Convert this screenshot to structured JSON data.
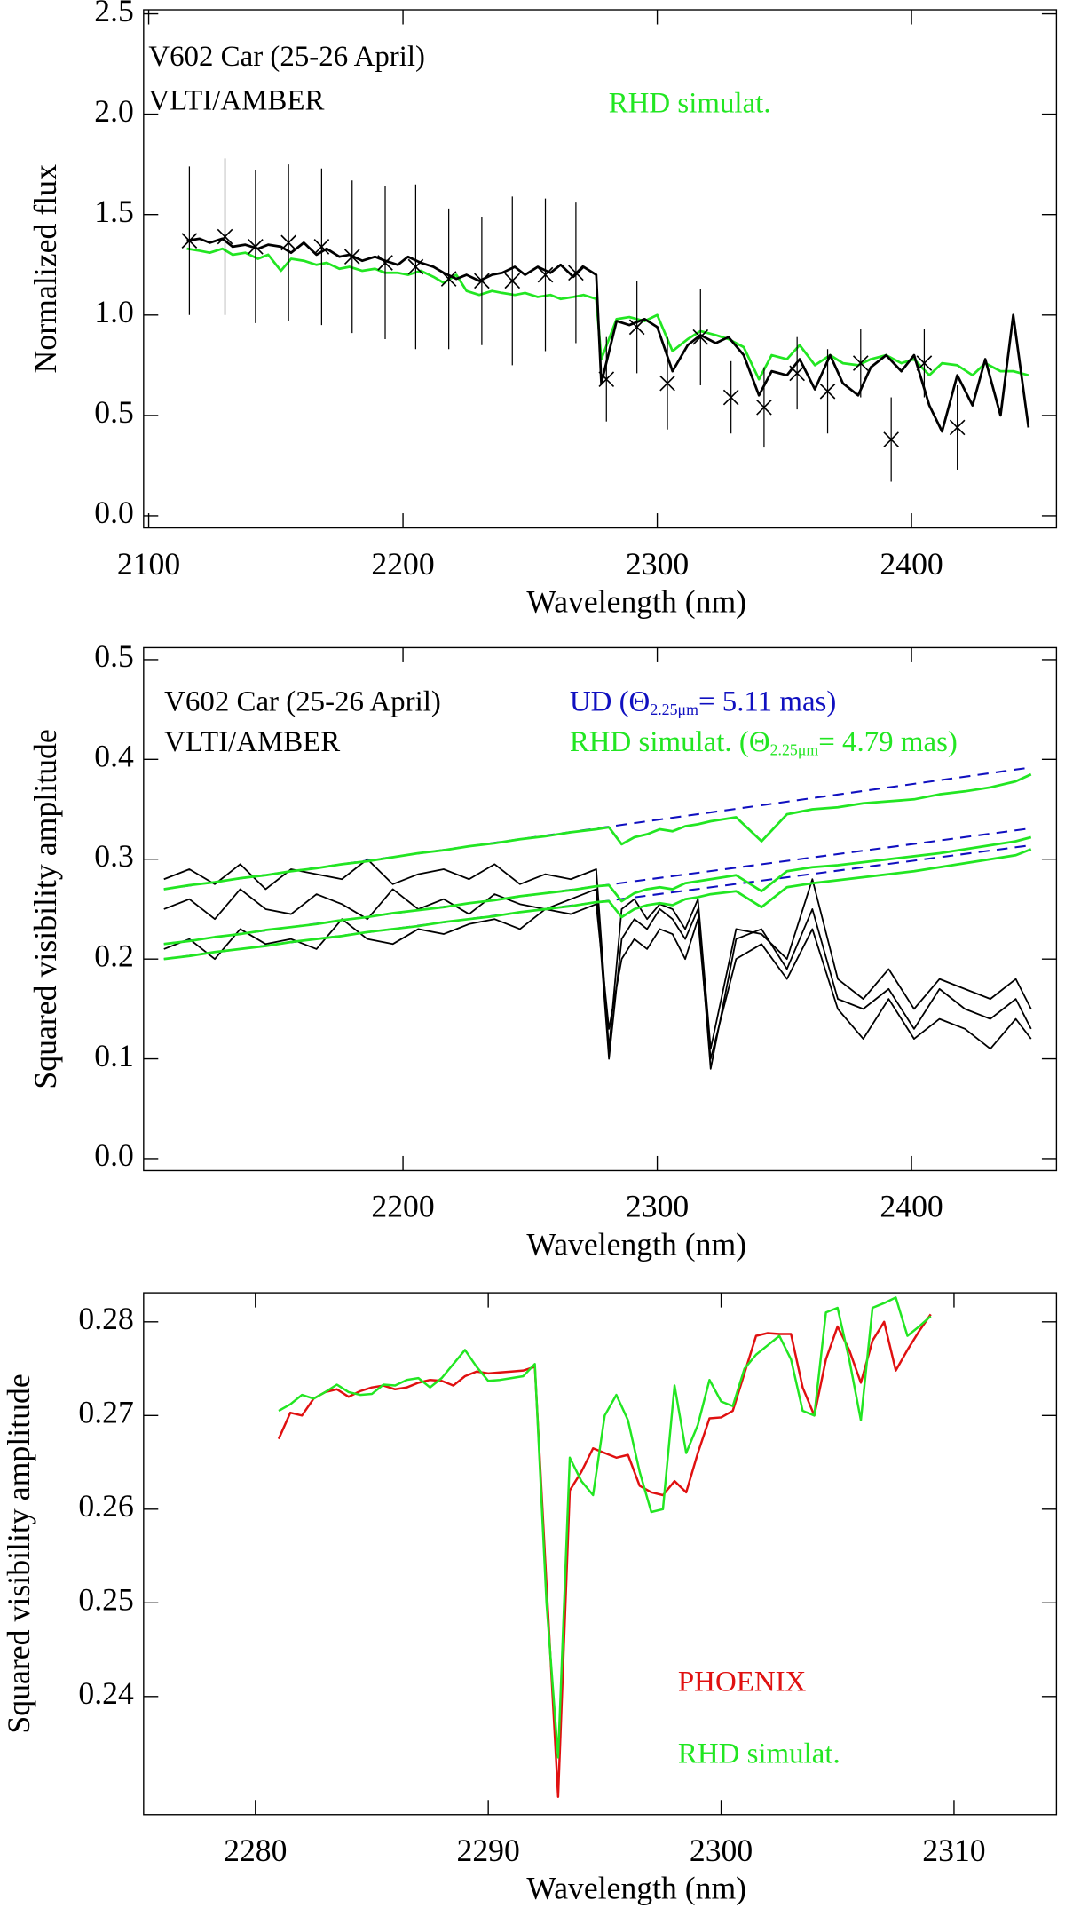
{
  "chart_data": [
    {
      "type": "line",
      "ylabel": "Normalized flux",
      "xlabel": "Wavelength (nm)",
      "xlim": [
        2098,
        2457
      ],
      "ylim": [
        -0.06,
        2.52
      ],
      "xticks": [
        2100,
        2200,
        2300,
        2400
      ],
      "yticks": [
        {
          "value": 0,
          "label": "0.0"
        },
        0.5,
        {
          "value": 1,
          "label": "1.0"
        },
        1.5,
        {
          "value": 2,
          "label": "2.0"
        },
        2.5
      ],
      "annotations": [
        {
          "text": "V602 Car (25-26 April)",
          "color": "#000000"
        },
        {
          "text": "VLTI/AMBER",
          "color": "#000000"
        },
        {
          "text": "RHD simulat.",
          "color": "#22e622"
        }
      ],
      "x": [
        2115,
        2120,
        2124,
        2129,
        2133,
        2138,
        2143,
        2147,
        2152,
        2156,
        2161,
        2166,
        2170,
        2175,
        2179,
        2184,
        2189,
        2193,
        2198,
        2202,
        2207,
        2212,
        2216,
        2221,
        2225,
        2230,
        2235,
        2239,
        2244,
        2248,
        2253,
        2258,
        2262,
        2267,
        2271,
        2276,
        2278,
        2284,
        2289,
        2295,
        2300,
        2306,
        2312,
        2317,
        2323,
        2328,
        2334,
        2340,
        2345,
        2351,
        2356,
        2362,
        2368,
        2373,
        2379,
        2384,
        2390,
        2396,
        2401,
        2407,
        2412,
        2418,
        2424,
        2429,
        2435,
        2440,
        2446
      ],
      "series": [
        {
          "color": "#22e622",
          "width": 2,
          "values": [
            1.33,
            1.32,
            1.31,
            1.33,
            1.3,
            1.31,
            1.28,
            1.3,
            1.22,
            1.28,
            1.27,
            1.25,
            1.26,
            1.23,
            1.24,
            1.22,
            1.23,
            1.21,
            1.21,
            1.2,
            1.22,
            1.19,
            1.16,
            1.2,
            1.12,
            1.1,
            1.12,
            1.11,
            1.1,
            1.11,
            1.09,
            1.1,
            1.08,
            1.09,
            1.1,
            1.08,
            0.78,
            0.98,
            0.99,
            0.97,
            1.0,
            0.82,
            0.88,
            0.92,
            0.9,
            0.88,
            0.84,
            0.68,
            0.8,
            0.78,
            0.85,
            0.75,
            0.8,
            0.76,
            0.75,
            0.78,
            0.8,
            0.76,
            0.78,
            0.7,
            0.76,
            0.75,
            0.7,
            0.76,
            0.72,
            0.72,
            0.7
          ]
        },
        {
          "color": "#000000",
          "width": 2,
          "values": [
            1.37,
            1.38,
            1.36,
            1.38,
            1.34,
            1.35,
            1.33,
            1.35,
            1.34,
            1.31,
            1.36,
            1.3,
            1.33,
            1.29,
            1.3,
            1.27,
            1.29,
            1.27,
            1.25,
            1.29,
            1.26,
            1.24,
            1.21,
            1.18,
            1.2,
            1.17,
            1.2,
            1.21,
            1.24,
            1.2,
            1.24,
            1.21,
            1.25,
            1.19,
            1.24,
            1.2,
            0.66,
            0.97,
            0.95,
            0.98,
            0.94,
            0.72,
            0.85,
            0.9,
            0.86,
            0.89,
            0.8,
            0.6,
            0.72,
            0.7,
            0.78,
            0.63,
            0.8,
            0.66,
            0.6,
            0.74,
            0.8,
            0.72,
            0.8,
            0.55,
            0.42,
            0.7,
            0.55,
            0.78,
            0.5,
            1.0,
            0.44
          ]
        }
      ],
      "errorbars": {
        "color": "#000000",
        "x": [
          2116,
          2130,
          2142,
          2155,
          2168,
          2180,
          2193,
          2205,
          2218,
          2231,
          2243,
          2256,
          2268,
          2280,
          2292,
          2304,
          2317,
          2329,
          2342,
          2355,
          2367,
          2380,
          2392,
          2405,
          2418
        ],
        "values": [
          1.37,
          1.39,
          1.34,
          1.36,
          1.34,
          1.29,
          1.26,
          1.24,
          1.18,
          1.17,
          1.17,
          1.2,
          1.21,
          0.68,
          0.94,
          0.66,
          0.89,
          0.59,
          0.54,
          0.71,
          0.62,
          0.76,
          0.38,
          0.76,
          0.44
        ],
        "errors": [
          0.37,
          0.39,
          0.38,
          0.39,
          0.39,
          0.38,
          0.38,
          0.41,
          0.35,
          0.32,
          0.42,
          0.38,
          0.35,
          0.21,
          0.23,
          0.23,
          0.24,
          0.18,
          0.2,
          0.18,
          0.21,
          0.17,
          0.21,
          0.17,
          0.21
        ]
      }
    },
    {
      "type": "line",
      "ylabel": "Squared visibility amplitude",
      "xlabel": "Wavelength (nm)",
      "xlim": [
        2098,
        2457
      ],
      "ylim": [
        -0.012,
        0.512
      ],
      "xticks": [
        2200,
        2300,
        2400
      ],
      "yticks": [
        {
          "value": 0,
          "label": "0.0"
        },
        0.1,
        0.2,
        0.3,
        0.4,
        0.5
      ],
      "annotations": [
        {
          "text": "V602 Car (25-26 April)",
          "color": "#000000"
        },
        {
          "text": "VLTI/AMBER",
          "color": "#000000"
        },
        {
          "text": "UD (Θ",
          "sub": "2.25μm",
          "after": "= 5.11 mas)",
          "color": "#1010c0"
        },
        {
          "text": "RHD simulat. (Θ",
          "sub": "2.25μm",
          "after": "= 4.79 mas)",
          "color": "#22e622"
        }
      ],
      "x": [
        2106,
        2116,
        2126,
        2136,
        2146,
        2156,
        2166,
        2176,
        2186,
        2196,
        2206,
        2216,
        2226,
        2236,
        2246,
        2256,
        2266,
        2276,
        2281,
        2286,
        2291,
        2296,
        2301,
        2306,
        2311,
        2316,
        2321,
        2331,
        2341,
        2351,
        2361,
        2371,
        2381,
        2391,
        2401,
        2411,
        2421,
        2431,
        2441,
        2447
      ],
      "series": [
        {
          "color": "#000000",
          "width": 1.3,
          "values": [
            0.28,
            0.29,
            0.275,
            0.295,
            0.27,
            0.29,
            0.285,
            0.28,
            0.3,
            0.275,
            0.285,
            0.29,
            0.28,
            0.295,
            0.275,
            0.285,
            0.28,
            0.29,
            0.11,
            0.25,
            0.26,
            0.24,
            0.255,
            0.25,
            0.23,
            0.26,
            0.11,
            0.23,
            0.225,
            0.2,
            0.28,
            0.18,
            0.16,
            0.19,
            0.15,
            0.18,
            0.17,
            0.16,
            0.18,
            0.15
          ]
        },
        {
          "color": "#000000",
          "width": 1.3,
          "values": [
            0.25,
            0.26,
            0.24,
            0.27,
            0.25,
            0.245,
            0.265,
            0.255,
            0.24,
            0.27,
            0.25,
            0.26,
            0.245,
            0.265,
            0.255,
            0.25,
            0.26,
            0.27,
            0.1,
            0.22,
            0.24,
            0.23,
            0.25,
            0.24,
            0.22,
            0.25,
            0.09,
            0.22,
            0.23,
            0.19,
            0.25,
            0.16,
            0.15,
            0.17,
            0.13,
            0.17,
            0.15,
            0.14,
            0.16,
            0.13
          ]
        },
        {
          "color": "#000000",
          "width": 1.3,
          "values": [
            0.21,
            0.22,
            0.2,
            0.23,
            0.215,
            0.22,
            0.21,
            0.24,
            0.22,
            0.215,
            0.23,
            0.225,
            0.235,
            0.24,
            0.23,
            0.25,
            0.245,
            0.255,
            0.13,
            0.2,
            0.22,
            0.21,
            0.23,
            0.225,
            0.2,
            0.24,
            0.1,
            0.2,
            0.215,
            0.18,
            0.23,
            0.15,
            0.12,
            0.16,
            0.12,
            0.14,
            0.13,
            0.11,
            0.14,
            0.12
          ]
        },
        {
          "color": "#1010c0",
          "width": 1.5,
          "dash": true,
          "x": [
            2106,
            2447
          ],
          "values": [
            0.27,
            0.392
          ]
        },
        {
          "color": "#1010c0",
          "width": 1.5,
          "dash": true,
          "x": [
            2106,
            2447
          ],
          "values": [
            0.215,
            0.331
          ]
        },
        {
          "color": "#1010c0",
          "width": 1.5,
          "dash": true,
          "x": [
            2106,
            2447
          ],
          "values": [
            0.2,
            0.314
          ]
        },
        {
          "color": "#22e622",
          "width": 2,
          "values": [
            0.27,
            0.274,
            0.277,
            0.281,
            0.284,
            0.288,
            0.291,
            0.295,
            0.298,
            0.302,
            0.306,
            0.309,
            0.313,
            0.316,
            0.32,
            0.323,
            0.327,
            0.33,
            0.332,
            0.315,
            0.322,
            0.325,
            0.33,
            0.328,
            0.333,
            0.335,
            0.338,
            0.342,
            0.318,
            0.345,
            0.35,
            0.352,
            0.356,
            0.358,
            0.36,
            0.365,
            0.368,
            0.372,
            0.378,
            0.385
          ]
        },
        {
          "color": "#22e622",
          "width": 2,
          "values": [
            0.215,
            0.218,
            0.222,
            0.225,
            0.229,
            0.232,
            0.235,
            0.239,
            0.242,
            0.246,
            0.249,
            0.252,
            0.256,
            0.259,
            0.263,
            0.266,
            0.269,
            0.273,
            0.274,
            0.258,
            0.266,
            0.27,
            0.272,
            0.27,
            0.276,
            0.278,
            0.28,
            0.284,
            0.268,
            0.288,
            0.292,
            0.294,
            0.297,
            0.3,
            0.303,
            0.306,
            0.31,
            0.314,
            0.318,
            0.322
          ]
        },
        {
          "color": "#22e622",
          "width": 2,
          "values": [
            0.2,
            0.203,
            0.207,
            0.21,
            0.213,
            0.217,
            0.22,
            0.223,
            0.227,
            0.23,
            0.233,
            0.237,
            0.24,
            0.243,
            0.247,
            0.25,
            0.253,
            0.257,
            0.258,
            0.242,
            0.25,
            0.254,
            0.256,
            0.254,
            0.26,
            0.262,
            0.265,
            0.268,
            0.252,
            0.272,
            0.276,
            0.279,
            0.282,
            0.285,
            0.288,
            0.292,
            0.296,
            0.3,
            0.304,
            0.31
          ]
        }
      ]
    },
    {
      "type": "line",
      "ylabel": "Squared visibility amplitude",
      "xlabel": "Wavelength (nm)",
      "xlim": [
        2275.2,
        2314.4
      ],
      "ylim": [
        0.2274,
        0.2831
      ],
      "xticks": [
        2280,
        2290,
        2300,
        2310
      ],
      "yticks": [
        0.24,
        0.25,
        0.26,
        0.27,
        0.28
      ],
      "annotations": [
        {
          "text": "PHOENIX",
          "color": "#e01010"
        },
        {
          "text": "RHD simulat.",
          "color": "#22e622"
        }
      ],
      "x": [
        2281,
        2281.5,
        2282,
        2282.5,
        2283,
        2283.5,
        2284,
        2284.5,
        2285,
        2285.5,
        2286,
        2286.5,
        2287,
        2287.5,
        2288,
        2288.5,
        2289,
        2289.5,
        2290,
        2290.5,
        2291,
        2291.5,
        2292,
        2292.5,
        2293,
        2293.5,
        2294,
        2294.5,
        2295,
        2295.5,
        2296,
        2296.5,
        2297,
        2297.5,
        2298,
        2298.5,
        2299,
        2299.5,
        2300,
        2300.5,
        2301,
        2301.5,
        2302,
        2302.5,
        2303,
        2303.5,
        2304,
        2304.5,
        2305,
        2305.5,
        2306,
        2306.5,
        2307,
        2307.5,
        2308,
        2308.5,
        2309
      ],
      "series": [
        {
          "color": "#e01010",
          "width": 1.8,
          "values": [
            0.2675,
            0.2703,
            0.27,
            0.2718,
            0.2725,
            0.2728,
            0.272,
            0.2726,
            0.273,
            0.2732,
            0.2728,
            0.273,
            0.2735,
            0.2738,
            0.2737,
            0.2732,
            0.2742,
            0.2747,
            0.2745,
            0.2746,
            0.2747,
            0.2748,
            0.2752,
            0.252,
            0.2293,
            0.262,
            0.264,
            0.2665,
            0.266,
            0.2655,
            0.2658,
            0.2625,
            0.2618,
            0.2615,
            0.263,
            0.2618,
            0.266,
            0.2697,
            0.2698,
            0.2705,
            0.2745,
            0.2785,
            0.2788,
            0.2787,
            0.2787,
            0.273,
            0.27,
            0.276,
            0.2795,
            0.277,
            0.2735,
            0.278,
            0.28,
            0.2748,
            0.277,
            0.279,
            0.2808
          ]
        },
        {
          "color": "#22e622",
          "width": 1.8,
          "values": [
            0.2705,
            0.2712,
            0.2722,
            0.2718,
            0.2725,
            0.2733,
            0.2725,
            0.2722,
            0.2723,
            0.2733,
            0.2732,
            0.2738,
            0.274,
            0.273,
            0.274,
            0.2755,
            0.277,
            0.2752,
            0.2737,
            0.2738,
            0.274,
            0.2742,
            0.2755,
            0.25,
            0.2335,
            0.2655,
            0.263,
            0.2615,
            0.27,
            0.2722,
            0.2695,
            0.264,
            0.2597,
            0.26,
            0.2732,
            0.266,
            0.269,
            0.2738,
            0.2715,
            0.271,
            0.275,
            0.2765,
            0.2775,
            0.2785,
            0.276,
            0.2705,
            0.27,
            0.281,
            0.2815,
            0.276,
            0.2695,
            0.2815,
            0.282,
            0.2826,
            0.2785,
            0.2795,
            0.2806
          ]
        }
      ]
    }
  ]
}
